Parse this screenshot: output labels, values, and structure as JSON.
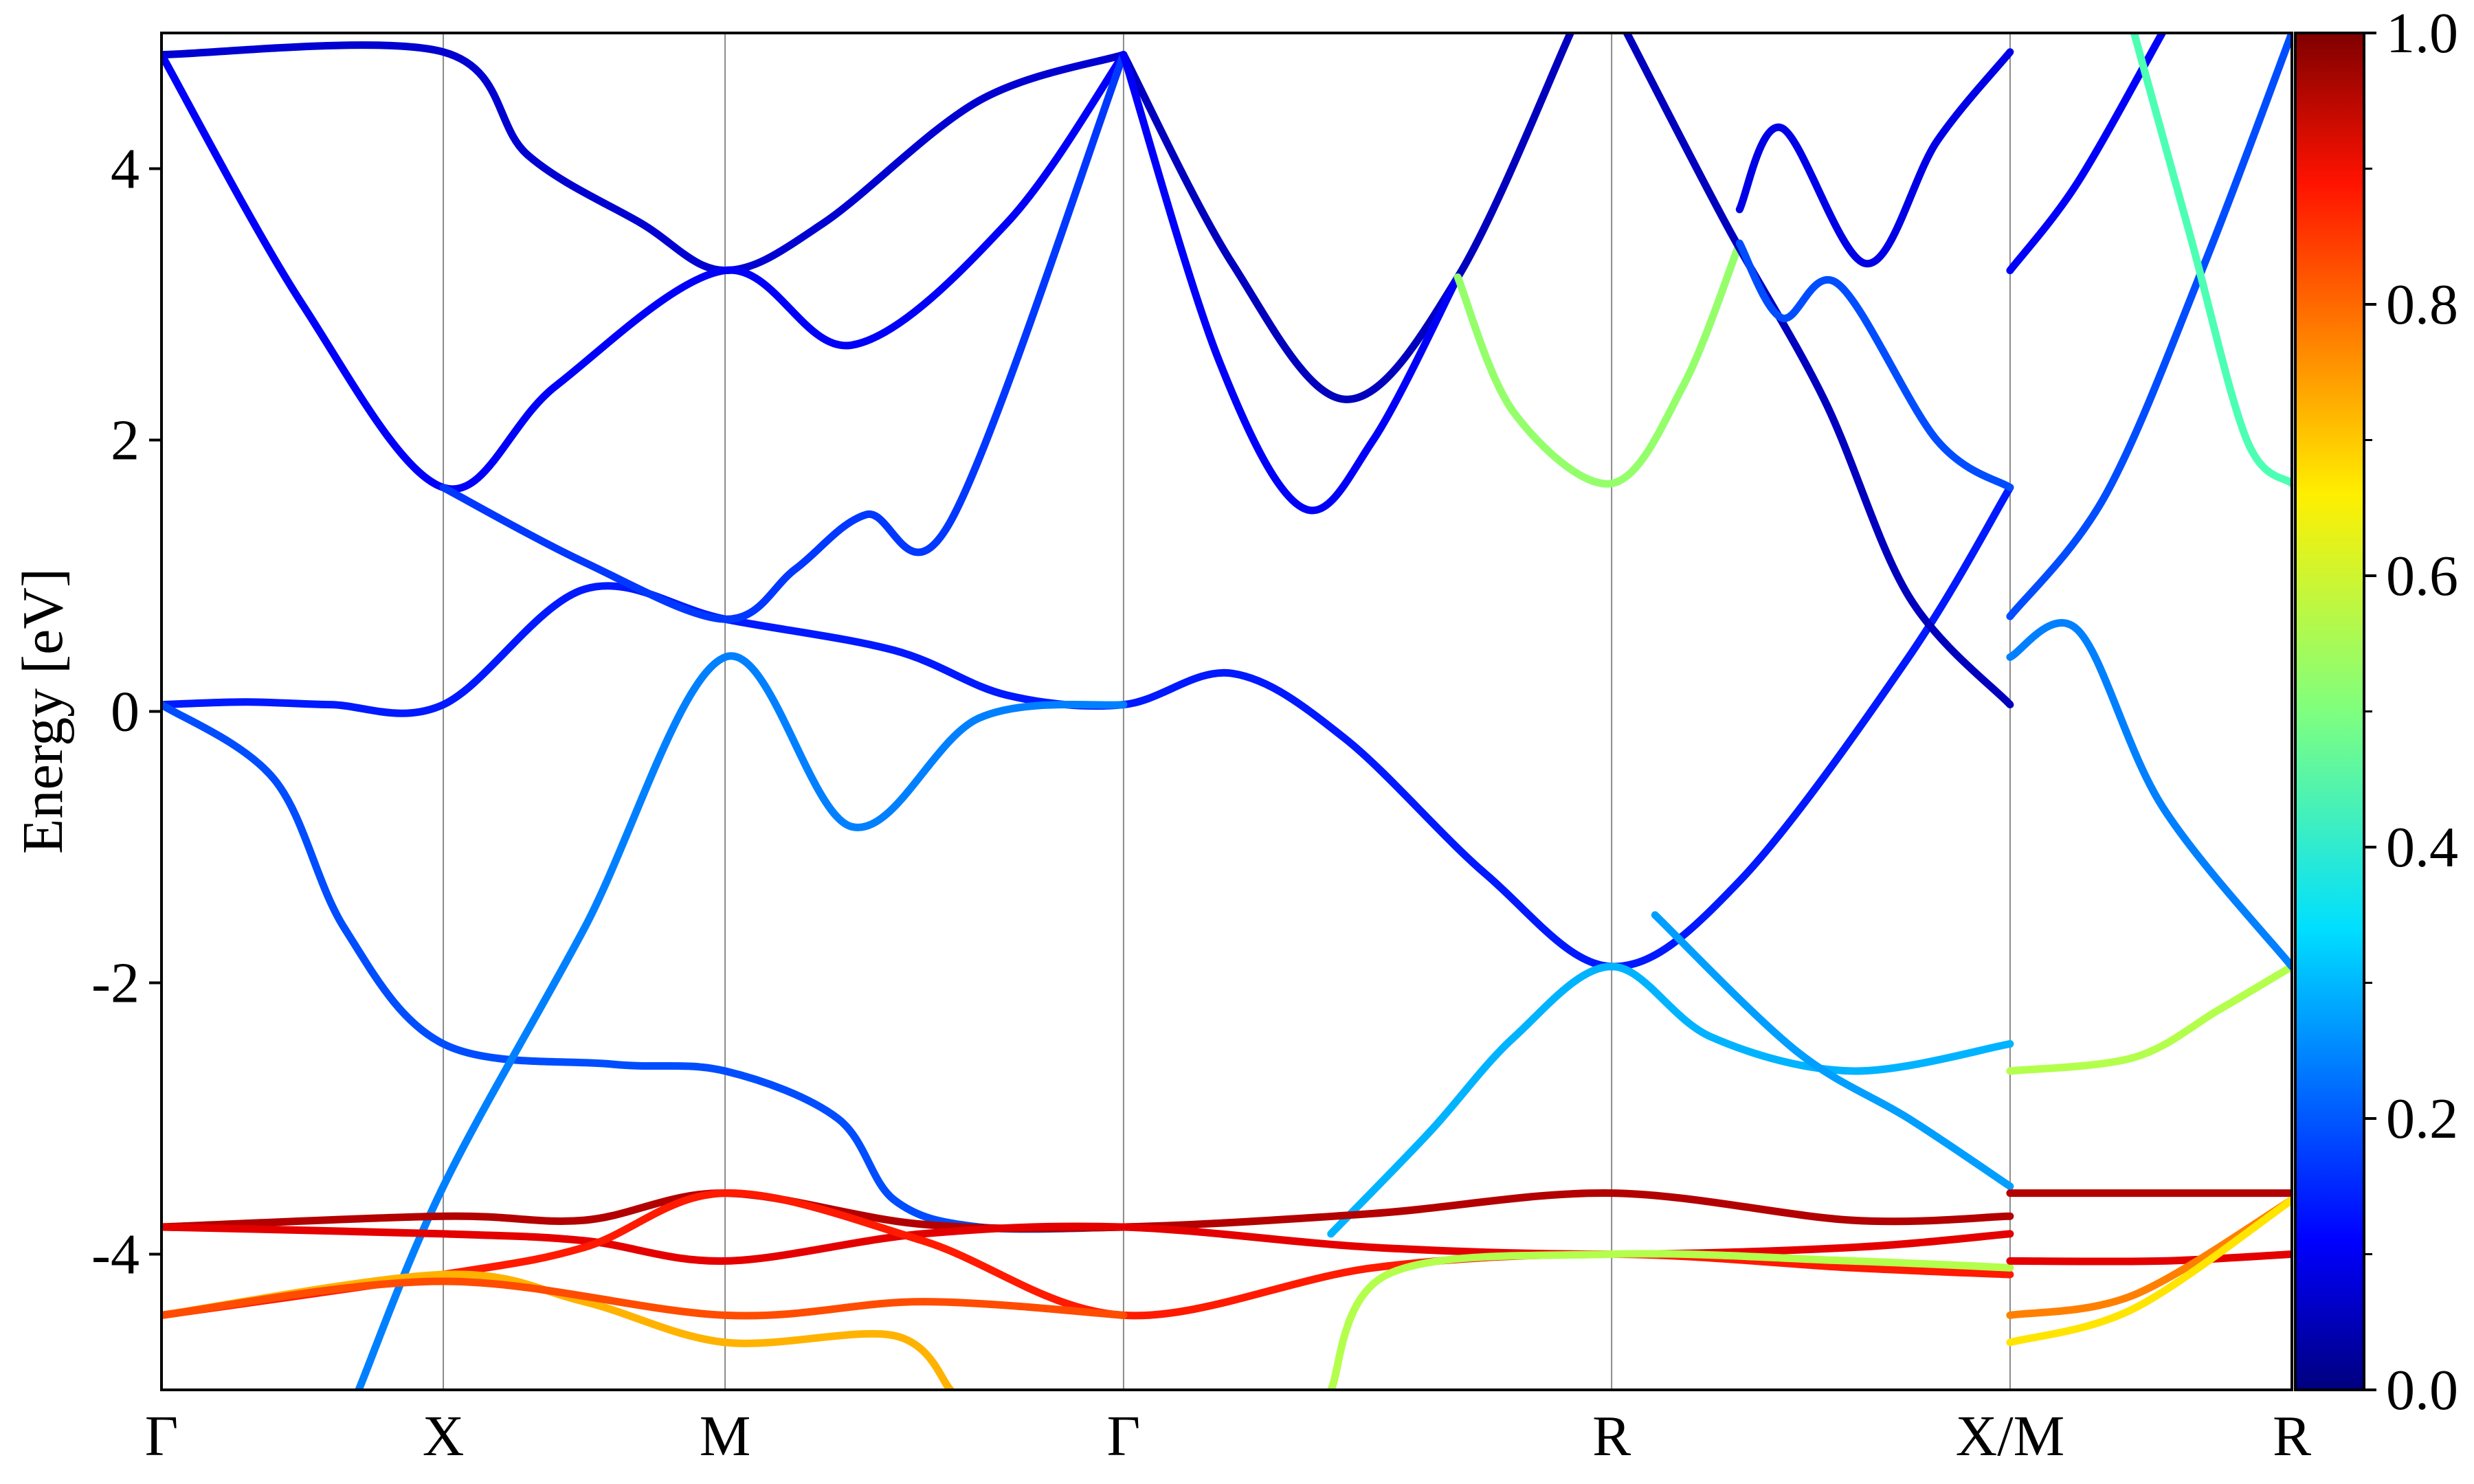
{
  "chart_data": {
    "type": "line",
    "title": "",
    "xlabel": "",
    "ylabel": "Energy [eV]",
    "ylim": [
      -5,
      5
    ],
    "yticks": [
      -4,
      -2,
      0,
      2,
      4
    ],
    "ytick_labels": [
      "-4",
      "-2",
      "0",
      "2",
      "4"
    ],
    "kpoints": [
      {
        "label": "Γ",
        "x": 0.0
      },
      {
        "label": "X",
        "x": 1.0
      },
      {
        "label": "M",
        "x": 2.0
      },
      {
        "label": "Γ",
        "x": 3.414
      },
      {
        "label": "R",
        "x": 5.146
      },
      {
        "label": "X/M",
        "x": 6.56
      },
      {
        "label": "R",
        "x": 7.56
      }
    ],
    "grid": "vertical lines at high-symmetry points",
    "colorbar": {
      "colormap": "jet",
      "range": [
        0.0,
        1.0
      ],
      "ticks": [
        "0.0",
        "0.2",
        "0.4",
        "0.6",
        "0.8",
        "1.0"
      ],
      "placement": "right"
    },
    "series": [
      {
        "weight": 0.08,
        "points": [
          [
            0,
            4.84
          ],
          [
            1,
            4.86
          ],
          [
            1.3,
            4.1
          ],
          [
            1.7,
            3.6
          ],
          [
            2,
            3.25
          ],
          [
            2.35,
            3.6
          ],
          [
            2.9,
            4.5
          ],
          [
            3.414,
            4.84
          ]
        ]
      },
      {
        "weight": 0.12,
        "points": [
          [
            0,
            4.84
          ],
          [
            0.5,
            3.0
          ],
          [
            1,
            1.65
          ],
          [
            1.4,
            2.4
          ],
          [
            2,
            3.25
          ],
          [
            2.45,
            2.7
          ],
          [
            3,
            3.6
          ],
          [
            3.414,
            4.84
          ]
        ]
      },
      {
        "weight": 0.15,
        "points": [
          [
            0,
            0.05
          ],
          [
            0.3,
            0.07
          ],
          [
            0.6,
            0.05
          ],
          [
            1,
            0.05
          ],
          [
            1.5,
            0.9
          ],
          [
            2,
            0.68
          ],
          [
            2.6,
            0.45
          ],
          [
            3.0,
            0.12
          ],
          [
            3.414,
            0.05
          ],
          [
            3.8,
            0.28
          ],
          [
            4.2,
            -0.2
          ],
          [
            4.7,
            -1.2
          ],
          [
            5.146,
            -1.88
          ],
          [
            5.6,
            -1.25
          ],
          [
            6.2,
            0.4
          ],
          [
            6.56,
            1.65
          ]
        ]
      },
      {
        "weight": 0.18,
        "points": [
          [
            1,
            1.65
          ],
          [
            1.5,
            1.1
          ],
          [
            2,
            0.68
          ],
          [
            2.25,
            1.05
          ],
          [
            2.5,
            1.45
          ],
          [
            2.8,
            1.4
          ],
          [
            3.414,
            4.84
          ]
        ]
      },
      {
        "weight": 0.06,
        "points": [
          [
            3.414,
            4.84
          ],
          [
            3.8,
            3.3
          ],
          [
            4.2,
            2.3
          ],
          [
            4.6,
            3.2
          ],
          [
            5.0,
            5.0
          ]
        ]
      },
      {
        "weight": 0.12,
        "points": [
          [
            3.414,
            4.84
          ],
          [
            3.75,
            2.6
          ],
          [
            4.05,
            1.5
          ],
          [
            4.3,
            2.0
          ],
          [
            4.6,
            3.2
          ]
        ]
      },
      {
        "weight": 0.52,
        "points": [
          [
            4.6,
            3.2
          ],
          [
            4.8,
            2.2
          ],
          [
            5.146,
            1.68
          ],
          [
            5.4,
            2.4
          ],
          [
            5.6,
            3.45
          ]
        ]
      },
      {
        "weight": 0.06,
        "points": [
          [
            5.2,
            5.0
          ],
          [
            5.55,
            3.6
          ],
          [
            5.9,
            2.3
          ],
          [
            6.2,
            0.85
          ],
          [
            6.56,
            0.05
          ]
        ]
      },
      {
        "weight": 0.2,
        "points": [
          [
            5.6,
            3.45
          ],
          [
            5.75,
            2.9
          ],
          [
            5.95,
            3.15
          ],
          [
            6.3,
            2.0
          ],
          [
            6.56,
            1.65
          ]
        ]
      },
      {
        "weight": 0.1,
        "points": [
          [
            6.56,
            4.86
          ],
          [
            6.3,
            4.2
          ],
          [
            6.05,
            3.3
          ],
          [
            5.75,
            4.3
          ],
          [
            5.6,
            3.7
          ]
        ]
      },
      {
        "weight": 0.2,
        "points": [
          [
            0,
            0.05
          ],
          [
            0.4,
            -0.5
          ],
          [
            0.65,
            -1.6
          ],
          [
            1,
            -2.45
          ],
          [
            1.6,
            -2.6
          ],
          [
            2,
            -2.65
          ],
          [
            2.4,
            -3.0
          ],
          [
            2.6,
            -3.6
          ],
          [
            2.9,
            -3.8
          ],
          [
            3.414,
            -3.8
          ]
        ]
      },
      {
        "weight": 0.25,
        "points": [
          [
            0.7,
            -5.0
          ],
          [
            1,
            -3.5
          ],
          [
            1.5,
            -1.6
          ],
          [
            2,
            0.4
          ],
          [
            2.45,
            -0.85
          ],
          [
            2.9,
            -0.05
          ],
          [
            3.414,
            0.05
          ]
        ]
      },
      {
        "weight": 0.3,
        "points": [
          [
            4.15,
            -3.85
          ],
          [
            4.5,
            -3.1
          ],
          [
            4.8,
            -2.4
          ],
          [
            5.146,
            -1.88
          ],
          [
            5.5,
            -2.4
          ],
          [
            6.0,
            -2.65
          ],
          [
            6.56,
            -2.45
          ]
        ]
      },
      {
        "weight": 0.28,
        "points": [
          [
            5.3,
            -1.5
          ],
          [
            5.8,
            -2.5
          ],
          [
            6.2,
            -3.0
          ],
          [
            6.56,
            -3.5
          ]
        ]
      },
      {
        "weight": 0.55,
        "points": [
          [
            6.56,
            -2.65
          ],
          [
            7.0,
            -2.55
          ],
          [
            7.3,
            -2.2
          ],
          [
            7.56,
            -1.88
          ]
        ]
      },
      {
        "weight": 0.25,
        "points": [
          [
            6.56,
            0.4
          ],
          [
            6.8,
            0.6
          ],
          [
            7.1,
            -0.7
          ],
          [
            7.56,
            -1.88
          ]
        ]
      },
      {
        "weight": 0.12,
        "points": [
          [
            6.56,
            3.25
          ],
          [
            6.8,
            3.9
          ],
          [
            7.1,
            5.0
          ]
        ]
      },
      {
        "weight": 0.2,
        "points": [
          [
            6.56,
            0.7
          ],
          [
            6.9,
            1.6
          ],
          [
            7.25,
            3.3
          ],
          [
            7.56,
            5.0
          ]
        ]
      },
      {
        "weight": 0.45,
        "points": [
          [
            7.0,
            5.0
          ],
          [
            7.2,
            3.5
          ],
          [
            7.4,
            2.0
          ],
          [
            7.56,
            1.68
          ]
        ]
      },
      {
        "weight": 0.95,
        "points": [
          [
            0,
            -3.8
          ],
          [
            1,
            -3.72
          ],
          [
            1.5,
            -3.75
          ],
          [
            2,
            -3.55
          ],
          [
            2.7,
            -3.78
          ],
          [
            3.414,
            -3.8
          ],
          [
            4.3,
            -3.7
          ],
          [
            5.146,
            -3.55
          ],
          [
            6.0,
            -3.75
          ],
          [
            6.56,
            -3.72
          ]
        ]
      },
      {
        "weight": 0.9,
        "points": [
          [
            0,
            -3.8
          ],
          [
            1,
            -3.85
          ],
          [
            1.5,
            -3.9
          ],
          [
            2,
            -4.05
          ],
          [
            2.7,
            -3.85
          ],
          [
            3.414,
            -3.8
          ],
          [
            4.3,
            -3.95
          ],
          [
            5.146,
            -4.0
          ],
          [
            6.0,
            -3.95
          ],
          [
            6.56,
            -3.85
          ]
        ]
      },
      {
        "weight": 0.85,
        "points": [
          [
            0,
            -4.45
          ],
          [
            1,
            -4.15
          ],
          [
            1.5,
            -3.95
          ],
          [
            2,
            -3.55
          ],
          [
            2.7,
            -3.9
          ],
          [
            3.414,
            -4.45
          ],
          [
            4.3,
            -4.1
          ],
          [
            5.146,
            -4.0
          ],
          [
            6.0,
            -4.1
          ],
          [
            6.56,
            -4.15
          ]
        ]
      },
      {
        "weight": 0.7,
        "points": [
          [
            0,
            -4.45
          ],
          [
            1,
            -4.15
          ],
          [
            1.5,
            -4.35
          ],
          [
            2,
            -4.65
          ],
          [
            2.6,
            -4.6
          ],
          [
            2.8,
            -5.0
          ]
        ]
      },
      {
        "weight": 0.8,
        "points": [
          [
            0,
            -4.45
          ],
          [
            1,
            -4.2
          ],
          [
            2,
            -4.45
          ],
          [
            2.7,
            -4.35
          ],
          [
            3.414,
            -4.45
          ]
        ]
      },
      {
        "weight": 0.55,
        "points": [
          [
            4.15,
            -5.0
          ],
          [
            4.35,
            -4.15
          ],
          [
            5.146,
            -4.0
          ],
          [
            6.0,
            -4.05
          ],
          [
            6.56,
            -4.1
          ]
        ]
      },
      {
        "weight": 0.95,
        "points": [
          [
            6.56,
            -3.55
          ],
          [
            7.56,
            -3.55
          ]
        ]
      },
      {
        "weight": 0.9,
        "points": [
          [
            6.56,
            -4.05
          ],
          [
            7.1,
            -4.05
          ],
          [
            7.56,
            -4.0
          ]
        ]
      },
      {
        "weight": 0.75,
        "points": [
          [
            6.56,
            -4.45
          ],
          [
            7.0,
            -4.3
          ],
          [
            7.56,
            -3.6
          ]
        ]
      },
      {
        "weight": 0.65,
        "points": [
          [
            6.56,
            -4.65
          ],
          [
            7.0,
            -4.4
          ],
          [
            7.56,
            -3.6
          ]
        ]
      }
    ]
  }
}
